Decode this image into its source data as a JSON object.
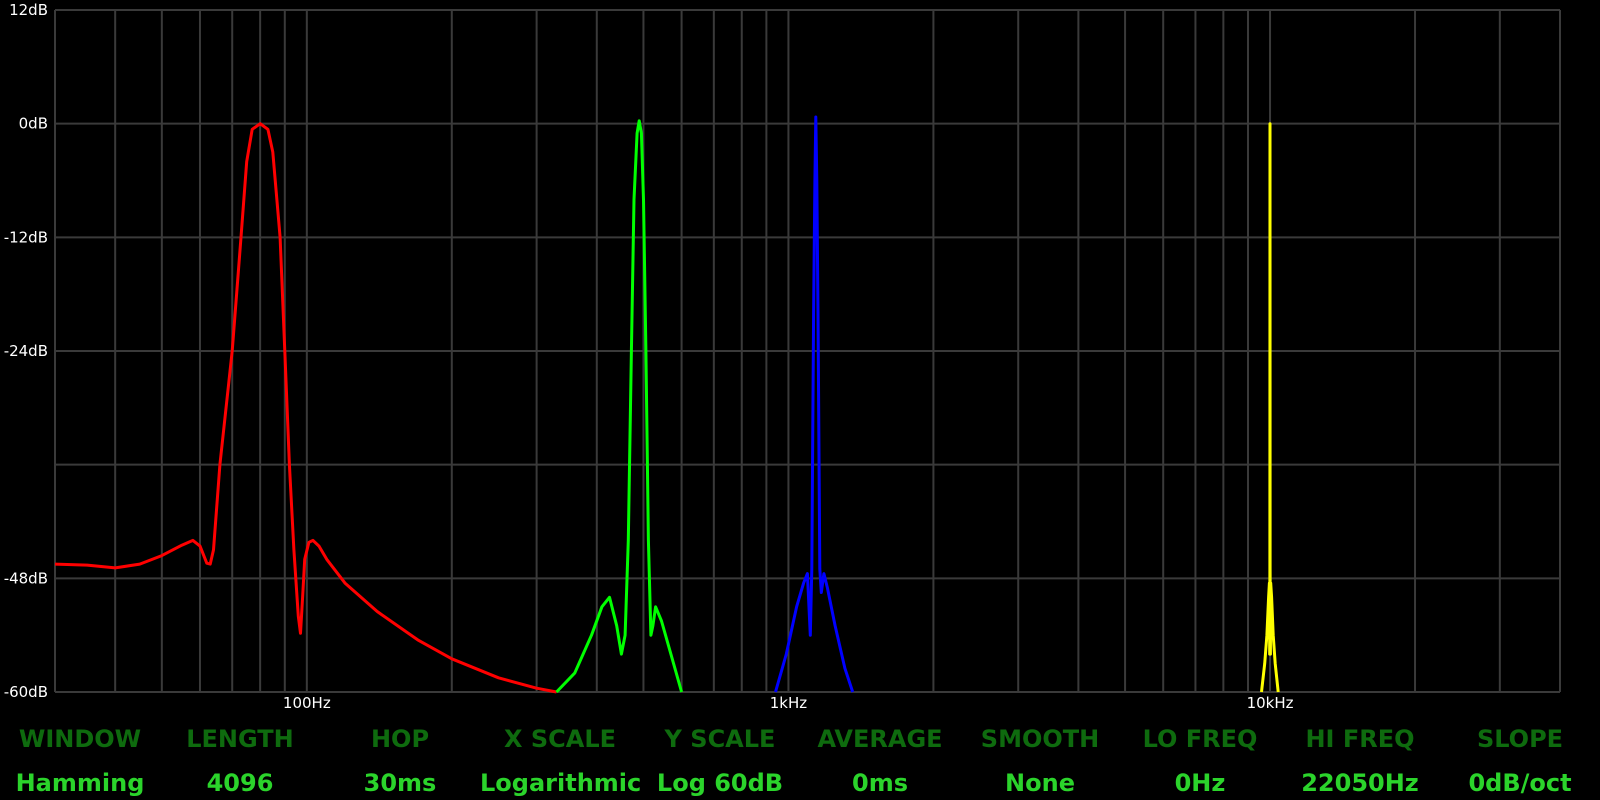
{
  "colors": {
    "background": "#000000",
    "grid": "#3a3a3a",
    "axis_text": "#ffffff",
    "control_label": "#0e6b0e",
    "control_value": "#2bd42b"
  },
  "controls": [
    {
      "label": "WINDOW",
      "value": "Hamming"
    },
    {
      "label": "LENGTH",
      "value": "4096"
    },
    {
      "label": "HOP",
      "value": "30ms"
    },
    {
      "label": "X SCALE",
      "value": "Logarithmic"
    },
    {
      "label": "Y SCALE",
      "value": "Log 60dB"
    },
    {
      "label": "AVERAGE",
      "value": "0ms"
    },
    {
      "label": "SMOOTH",
      "value": "None"
    },
    {
      "label": "LO FREQ",
      "value": "0Hz"
    },
    {
      "label": "HI FREQ",
      "value": "22050Hz"
    },
    {
      "label": "SLOPE",
      "value": "0dB/oct"
    }
  ],
  "chart_data": {
    "type": "line",
    "title": "",
    "xlabel": "",
    "ylabel": "",
    "x_scale": "log",
    "xlim_hz": [
      30,
      40000
    ],
    "ylim_db": [
      -60,
      12
    ],
    "x_tick_labels": [
      {
        "hz": 100,
        "label": "100Hz"
      },
      {
        "hz": 1000,
        "label": "1kHz"
      },
      {
        "hz": 10000,
        "label": "10kHz"
      }
    ],
    "y_tick_labels": [
      {
        "db": 12,
        "label": "12dB"
      },
      {
        "db": 0,
        "label": "0dB"
      },
      {
        "db": -12,
        "label": "-12dB"
      },
      {
        "db": -24,
        "label": "-24dB"
      },
      {
        "db": -48,
        "label": "-48dB"
      },
      {
        "db": -60,
        "label": "-60dB"
      }
    ],
    "grid": true,
    "series": [
      {
        "color": "#ff0000",
        "points": [
          [
            30,
            -46.5
          ],
          [
            35,
            -46.6
          ],
          [
            40,
            -46.9
          ],
          [
            45,
            -46.5
          ],
          [
            50,
            -45.6
          ],
          [
            55,
            -44.5
          ],
          [
            58,
            -44
          ],
          [
            60,
            -44.6
          ],
          [
            62,
            -46.4
          ],
          [
            63,
            -46.5
          ],
          [
            64,
            -45
          ],
          [
            66,
            -36
          ],
          [
            70,
            -24
          ],
          [
            73,
            -12
          ],
          [
            75,
            -4
          ],
          [
            77,
            -0.6
          ],
          [
            80,
            0
          ],
          [
            83,
            -0.6
          ],
          [
            85,
            -3
          ],
          [
            88,
            -12
          ],
          [
            90,
            -24
          ],
          [
            92,
            -36
          ],
          [
            94,
            -45
          ],
          [
            96,
            -52
          ],
          [
            97,
            -53.8
          ],
          [
            98,
            -50
          ],
          [
            99,
            -46
          ],
          [
            101,
            -44.2
          ],
          [
            103,
            -44
          ],
          [
            106,
            -44.6
          ],
          [
            110,
            -46
          ],
          [
            120,
            -48.5
          ],
          [
            140,
            -51.5
          ],
          [
            170,
            -54.5
          ],
          [
            200,
            -56.5
          ],
          [
            250,
            -58.5
          ],
          [
            300,
            -59.6
          ],
          [
            330,
            -60.2
          ]
        ]
      },
      {
        "color": "#00ff00",
        "points": [
          [
            330,
            -60
          ],
          [
            360,
            -58
          ],
          [
            390,
            -54
          ],
          [
            410,
            -51
          ],
          [
            425,
            -50
          ],
          [
            440,
            -53
          ],
          [
            450,
            -56
          ],
          [
            458,
            -54
          ],
          [
            465,
            -44
          ],
          [
            472,
            -24
          ],
          [
            478,
            -8
          ],
          [
            485,
            -1
          ],
          [
            490,
            0.3
          ],
          [
            495,
            -1
          ],
          [
            500,
            -8
          ],
          [
            506,
            -24
          ],
          [
            512,
            -44
          ],
          [
            518,
            -54
          ],
          [
            523,
            -53
          ],
          [
            530,
            -51
          ],
          [
            545,
            -52.5
          ],
          [
            570,
            -56
          ],
          [
            600,
            -60
          ]
        ]
      },
      {
        "color": "#0000ff",
        "points": [
          [
            940,
            -60
          ],
          [
            990,
            -56
          ],
          [
            1040,
            -51
          ],
          [
            1075,
            -48.5
          ],
          [
            1095,
            -47.5
          ],
          [
            1110,
            -54
          ],
          [
            1118,
            -47
          ],
          [
            1128,
            -20
          ],
          [
            1135,
            -6
          ],
          [
            1140,
            0.7
          ],
          [
            1145,
            -6
          ],
          [
            1152,
            -20
          ],
          [
            1162,
            -47
          ],
          [
            1170,
            -49.5
          ],
          [
            1185,
            -47.5
          ],
          [
            1205,
            -49
          ],
          [
            1250,
            -53
          ],
          [
            1310,
            -57.5
          ],
          [
            1360,
            -60.3
          ]
        ]
      },
      {
        "color": "#ffff00",
        "points": [
          [
            9600,
            -60
          ],
          [
            9750,
            -57
          ],
          [
            9850,
            -54
          ],
          [
            9930,
            -50
          ],
          [
            9970,
            -48.5
          ],
          [
            9985,
            -56
          ],
          [
            9995,
            -47
          ],
          [
            10000,
            0
          ],
          [
            10005,
            -47
          ],
          [
            10015,
            -56
          ],
          [
            10030,
            -48.5
          ],
          [
            10075,
            -50
          ],
          [
            10150,
            -54
          ],
          [
            10250,
            -57
          ],
          [
            10400,
            -60
          ]
        ]
      }
    ]
  }
}
